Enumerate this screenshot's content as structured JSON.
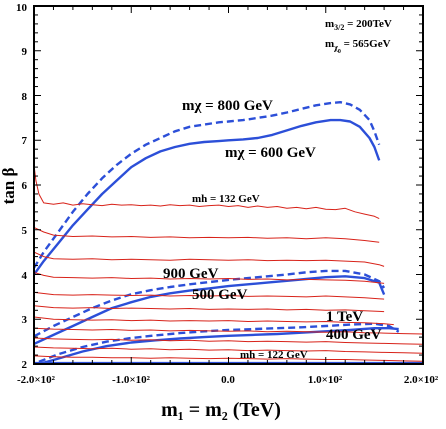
{
  "chart_data": {
    "type": "line",
    "xlabel": "m₁ = m₂ (TeV)",
    "ylabel": "tan β",
    "xlim": [
      -200,
      200
    ],
    "ylim": [
      2,
      10
    ],
    "x_ticks": [
      "-2.0×10²",
      "-1.0×10²",
      "0.0",
      "1.0×10²",
      "2.0×10²"
    ],
    "x_tick_values": [
      -200,
      -100,
      0,
      100,
      200
    ],
    "y_ticks": [
      "2",
      "3",
      "4",
      "5",
      "6",
      "7",
      "8",
      "9",
      "10"
    ],
    "y_tick_values": [
      2,
      3,
      4,
      5,
      6,
      7,
      8,
      9,
      10
    ],
    "parameters": {
      "line1_main": "m",
      "line1_sub": "3/2",
      "line1_value": " = 200TeV",
      "line2_main": "m",
      "line2_sub": "χ",
      "line2_subsub": "0",
      "line2_value": " = 565GeV"
    },
    "annotations": {
      "mchi_800": "mχ = 800 GeV",
      "mchi_600": "mχ = 600 GeV",
      "mh_132": "mh = 132 GeV",
      "mh_122": "mh = 122 GeV",
      "l900": "900 GeV",
      "l500": "500 GeV",
      "l1tev": "1 TeV",
      "l400": "400 GeV"
    },
    "colors": {
      "neutralino": "#2c4fd8",
      "higgs": "#d8231a",
      "frame": "#000000"
    },
    "series": [
      {
        "style": "blue-dashed",
        "x": [
          -200,
          -190,
          -175,
          -160,
          -145,
          -130,
          -115,
          -100,
          -85,
          -70,
          -55,
          -40,
          -25,
          -10,
          0,
          15,
          30,
          45,
          60,
          75,
          90,
          105,
          115,
          125,
          135,
          145,
          150,
          155
        ],
        "y": [
          4.15,
          4.5,
          4.95,
          5.4,
          5.8,
          6.15,
          6.45,
          6.7,
          6.9,
          7.05,
          7.2,
          7.3,
          7.35,
          7.4,
          7.42,
          7.45,
          7.5,
          7.55,
          7.62,
          7.7,
          7.78,
          7.83,
          7.85,
          7.8,
          7.68,
          7.45,
          7.2,
          6.9
        ]
      },
      {
        "style": "blue-solid",
        "x": [
          -200,
          -190,
          -175,
          -160,
          -145,
          -130,
          -115,
          -100,
          -85,
          -70,
          -55,
          -40,
          -25,
          -10,
          0,
          15,
          30,
          45,
          60,
          75,
          90,
          105,
          115,
          125,
          135,
          145,
          150,
          155
        ],
        "y": [
          4.0,
          4.3,
          4.7,
          5.1,
          5.45,
          5.8,
          6.1,
          6.4,
          6.6,
          6.75,
          6.85,
          6.92,
          6.96,
          6.98,
          7.0,
          7.02,
          7.05,
          7.12,
          7.22,
          7.32,
          7.4,
          7.45,
          7.45,
          7.42,
          7.3,
          7.05,
          6.85,
          6.55
        ]
      },
      {
        "style": "blue-dashed",
        "x": [
          -200,
          -180,
          -160,
          -140,
          -120,
          -100,
          -80,
          -60,
          -40,
          -20,
          0,
          20,
          40,
          60,
          80,
          100,
          120,
          140,
          155,
          160
        ],
        "y": [
          2.62,
          2.85,
          3.05,
          3.25,
          3.42,
          3.56,
          3.65,
          3.72,
          3.78,
          3.83,
          3.88,
          3.92,
          3.96,
          4.0,
          4.05,
          4.08,
          4.08,
          4.0,
          3.85,
          3.7
        ]
      },
      {
        "style": "blue-solid",
        "x": [
          -200,
          -180,
          -160,
          -140,
          -120,
          -100,
          -80,
          -60,
          -40,
          -20,
          0,
          20,
          40,
          60,
          80,
          100,
          120,
          140,
          155,
          160
        ],
        "y": [
          2.45,
          2.65,
          2.85,
          3.05,
          3.25,
          3.38,
          3.5,
          3.58,
          3.64,
          3.69,
          3.74,
          3.78,
          3.82,
          3.86,
          3.9,
          3.94,
          3.96,
          3.92,
          3.82,
          3.55
        ]
      },
      {
        "style": "blue-dashed",
        "x": [
          -195,
          -175,
          -150,
          -125,
          -100,
          -75,
          -50,
          -25,
          0,
          25,
          50,
          75,
          100,
          125,
          150,
          165,
          175
        ],
        "y": [
          2.05,
          2.22,
          2.38,
          2.5,
          2.58,
          2.64,
          2.69,
          2.73,
          2.76,
          2.78,
          2.8,
          2.82,
          2.85,
          2.88,
          2.9,
          2.85,
          2.72
        ]
      },
      {
        "style": "blue-solid",
        "x": [
          -195,
          -175,
          -150,
          -125,
          -100,
          -75,
          -50,
          -25,
          0,
          25,
          50,
          75,
          100,
          125,
          150,
          165,
          175
        ],
        "y": [
          2.0,
          2.12,
          2.28,
          2.4,
          2.48,
          2.53,
          2.57,
          2.6,
          2.63,
          2.65,
          2.67,
          2.7,
          2.73,
          2.76,
          2.8,
          2.8,
          2.78
        ]
      },
      {
        "style": "blue-solid",
        "x": [
          -200,
          200
        ],
        "y": [
          2.02,
          2.02
        ]
      },
      {
        "style": "red-solid",
        "x": [
          -200,
          -198,
          -195,
          -190,
          -180,
          -170,
          -160,
          -150,
          -140,
          -130,
          -120,
          -110,
          -100,
          -90,
          -80,
          -70,
          -60,
          -50,
          -40,
          -30,
          -20,
          -10,
          0,
          10,
          20,
          30,
          40,
          50,
          60,
          70,
          80,
          90,
          100,
          110,
          120,
          130,
          140,
          150,
          155
        ],
        "y": [
          6.45,
          6.1,
          5.8,
          5.6,
          5.57,
          5.6,
          5.55,
          5.58,
          5.56,
          5.54,
          5.57,
          5.55,
          5.56,
          5.54,
          5.55,
          5.53,
          5.56,
          5.54,
          5.55,
          5.52,
          5.54,
          5.55,
          5.52,
          5.54,
          5.5,
          5.53,
          5.5,
          5.52,
          5.48,
          5.5,
          5.47,
          5.5,
          5.46,
          5.45,
          5.48,
          5.4,
          5.35,
          5.3,
          5.25
        ]
      },
      {
        "style": "red-solid",
        "x": [
          -200,
          -190,
          -180,
          -160,
          -140,
          -120,
          -100,
          -80,
          -60,
          -40,
          -20,
          0,
          20,
          40,
          60,
          80,
          100,
          120,
          140,
          155
        ],
        "y": [
          5.05,
          4.95,
          4.88,
          4.85,
          4.86,
          4.84,
          4.85,
          4.83,
          4.84,
          4.82,
          4.83,
          4.82,
          4.83,
          4.81,
          4.82,
          4.8,
          4.82,
          4.8,
          4.76,
          4.72
        ]
      },
      {
        "style": "red-solid",
        "x": [
          -200,
          -190,
          -180,
          -160,
          -140,
          -120,
          -100,
          -80,
          -60,
          -40,
          -20,
          0,
          20,
          40,
          60,
          80,
          100,
          120,
          140,
          155,
          160
        ],
        "y": [
          4.5,
          4.4,
          4.35,
          4.34,
          4.35,
          4.33,
          4.34,
          4.33,
          4.32,
          4.34,
          4.33,
          4.32,
          4.33,
          4.31,
          4.32,
          4.31,
          4.32,
          4.3,
          4.28,
          4.22,
          4.18
        ]
      },
      {
        "style": "red-solid",
        "x": [
          -200,
          -190,
          -180,
          -160,
          -140,
          -120,
          -100,
          -80,
          -60,
          -40,
          -20,
          0,
          20,
          40,
          60,
          80,
          100,
          120,
          140,
          160
        ],
        "y": [
          4.05,
          3.98,
          3.94,
          3.93,
          3.92,
          3.93,
          3.91,
          3.92,
          3.9,
          3.91,
          3.9,
          3.91,
          3.89,
          3.9,
          3.88,
          3.89,
          3.88,
          3.87,
          3.85,
          3.8
        ]
      },
      {
        "style": "red-solid",
        "x": [
          -200,
          -180,
          -160,
          -140,
          -120,
          -100,
          -80,
          -60,
          -40,
          -20,
          0,
          20,
          40,
          60,
          80,
          100,
          120,
          140,
          160
        ],
        "y": [
          3.6,
          3.55,
          3.54,
          3.55,
          3.54,
          3.53,
          3.54,
          3.52,
          3.53,
          3.52,
          3.53,
          3.51,
          3.52,
          3.51,
          3.5,
          3.52,
          3.5,
          3.48,
          3.45
        ]
      },
      {
        "style": "red-solid",
        "x": [
          -200,
          -180,
          -160,
          -140,
          -120,
          -100,
          -80,
          -60,
          -40,
          -20,
          0,
          20,
          40,
          60,
          80,
          100,
          120,
          140,
          160
        ],
        "y": [
          3.3,
          3.26,
          3.25,
          3.26,
          3.24,
          3.25,
          3.24,
          3.23,
          3.24,
          3.22,
          3.23,
          3.22,
          3.23,
          3.21,
          3.22,
          3.2,
          3.21,
          3.19,
          3.17
        ]
      },
      {
        "style": "red-solid",
        "x": [
          -200,
          -180,
          -160,
          -140,
          -120,
          -100,
          -80,
          -60,
          -40,
          -20,
          0,
          20,
          40,
          60,
          80,
          100,
          120,
          140,
          160,
          170
        ],
        "y": [
          3.05,
          3.0,
          2.99,
          2.98,
          2.99,
          2.97,
          2.98,
          2.96,
          2.97,
          2.96,
          2.97,
          2.95,
          2.96,
          2.95,
          2.94,
          2.95,
          2.93,
          2.92,
          2.9,
          2.88
        ]
      },
      {
        "style": "red-solid",
        "x": [
          -200,
          -180,
          -160,
          -140,
          -120,
          -100,
          -80,
          -60,
          -40,
          -20,
          0,
          20,
          40,
          60,
          80,
          100,
          120,
          140,
          160,
          180,
          200
        ],
        "y": [
          2.8,
          2.78,
          2.77,
          2.76,
          2.77,
          2.75,
          2.76,
          2.74,
          2.75,
          2.74,
          2.73,
          2.74,
          2.72,
          2.73,
          2.72,
          2.71,
          2.72,
          2.7,
          2.69,
          2.68,
          2.67
        ]
      },
      {
        "style": "red-solid",
        "x": [
          -200,
          -180,
          -160,
          -140,
          -120,
          -100,
          -80,
          -60,
          -40,
          -20,
          0,
          20,
          40,
          60,
          80,
          100,
          120,
          140,
          160,
          180,
          200
        ],
        "y": [
          2.58,
          2.56,
          2.55,
          2.54,
          2.55,
          2.53,
          2.54,
          2.52,
          2.53,
          2.51,
          2.52,
          2.5,
          2.51,
          2.5,
          2.49,
          2.5,
          2.48,
          2.47,
          2.46,
          2.45,
          2.44
        ]
      },
      {
        "style": "red-solid",
        "x": [
          -200,
          -180,
          -160,
          -140,
          -120,
          -100,
          -80,
          -60,
          -40,
          -20,
          0,
          20,
          40,
          60,
          80,
          100,
          120,
          140,
          160,
          180,
          200
        ],
        "y": [
          2.38,
          2.36,
          2.35,
          2.34,
          2.35,
          2.33,
          2.34,
          2.32,
          2.33,
          2.31,
          2.32,
          2.3,
          2.31,
          2.3,
          2.29,
          2.3,
          2.28,
          2.27,
          2.26,
          2.25,
          2.24
        ]
      },
      {
        "style": "red-solid",
        "x": [
          -200,
          -180,
          -160,
          -140,
          -120,
          -100,
          -80,
          -60,
          -40,
          -20,
          0,
          20,
          40,
          60,
          80,
          100,
          120,
          140,
          160,
          180,
          200
        ],
        "y": [
          2.18,
          2.16,
          2.15,
          2.15,
          2.14,
          2.14,
          2.13,
          2.14,
          2.13,
          2.12,
          2.13,
          2.12,
          2.11,
          2.12,
          2.11,
          2.1,
          2.1,
          2.09,
          2.08,
          2.07,
          2.06
        ]
      }
    ]
  }
}
